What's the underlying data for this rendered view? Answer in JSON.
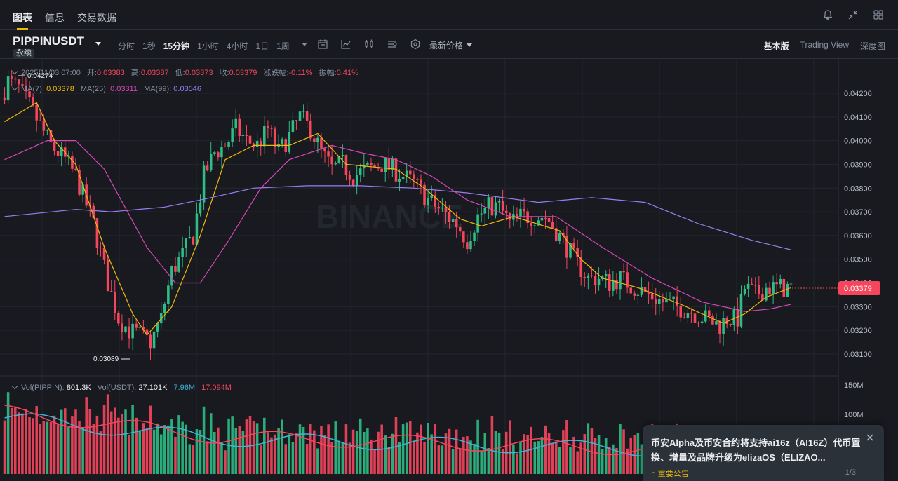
{
  "header": {
    "tabs": [
      {
        "label": "图表",
        "active": true
      },
      {
        "label": "信息",
        "active": false
      },
      {
        "label": "交易数据",
        "active": false
      }
    ],
    "icons": [
      "bell-icon",
      "collapse-icon",
      "grid-icon"
    ]
  },
  "toolbar": {
    "symbol": "PIPPINUSDT",
    "badge": "永续",
    "intervals": [
      {
        "label": "分时",
        "active": false
      },
      {
        "label": "1秒",
        "active": false
      },
      {
        "label": "15分钟",
        "active": true
      },
      {
        "label": "1小时",
        "active": false
      },
      {
        "label": "4小时",
        "active": false
      },
      {
        "label": "1日",
        "active": false
      },
      {
        "label": "1周",
        "active": false
      }
    ],
    "tool_icons": [
      "calendar-icon",
      "indicator-icon",
      "candle-type-icon",
      "settings-sliders-icon",
      "hexagon-icon"
    ],
    "price_type": "最新价格",
    "views": [
      {
        "label": "基本版",
        "active": true
      },
      {
        "label": "Trading View",
        "active": false
      },
      {
        "label": "深度图",
        "active": false
      }
    ]
  },
  "ohlc": {
    "date": "2025/11/03 07:00",
    "open_label": "开:",
    "open": "0.03383",
    "high_label": "高:",
    "high": "0.03387",
    "low_label": "低:",
    "low": "0.03373",
    "close_label": "收:",
    "close": "0.03379",
    "change_label": "涨跌幅:",
    "change": "-0.11%",
    "amp_label": "振幅:",
    "amp": "0.41%"
  },
  "ma_legend": {
    "ma7_label": "MA(7):",
    "ma7": "0.03378",
    "ma25_label": "MA(25):",
    "ma25": "0.03311",
    "ma99_label": "MA(99):",
    "ma99": "0.03546"
  },
  "vol_legend": {
    "vol_label": "Vol(PIPPIN):",
    "vol": "801.3K",
    "volusdt_label": "Vol(USDT):",
    "volusdt": "27.101K",
    "vma1": "7.96M",
    "vma2": "17.094M"
  },
  "price_axis": {
    "labels": [
      "0.04200",
      "0.04100",
      "0.04000",
      "0.03900",
      "0.03800",
      "0.03700",
      "0.03600",
      "0.03500",
      "0.03400",
      "0.03300",
      "0.03200",
      "0.03100"
    ],
    "current": "0.03379"
  },
  "vol_axis": {
    "labels": [
      "150M",
      "100M"
    ]
  },
  "markers": {
    "high": "0.04274",
    "low": "0.03089"
  },
  "watermark": "BINANCE",
  "notice": {
    "title": "币安Alpha及币安合约将支持ai16z（AI16Z）代币置换、增量及品牌升级为elizaOS（ELIZAO...",
    "link": "重要公告",
    "page": "1/3"
  },
  "colors": {
    "up": "#2ebd85",
    "down": "#f6465d",
    "ma7": "#f0b90b",
    "ma25": "#d647b8",
    "ma99": "#9b7cf0",
    "accent": "#f0b90b"
  },
  "chart_data": {
    "type": "candlestick",
    "y_range": [
      0.0305,
      0.043
    ],
    "anchors": [
      [
        0,
        0.0418
      ],
      [
        2,
        0.0425
      ],
      [
        5,
        0.0422
      ],
      [
        9,
        0.0412
      ],
      [
        14,
        0.0398
      ],
      [
        18,
        0.0392
      ],
      [
        21,
        0.0385
      ],
      [
        26,
        0.0365
      ],
      [
        30,
        0.034
      ],
      [
        33,
        0.0325
      ],
      [
        36,
        0.032
      ],
      [
        39,
        0.0318
      ],
      [
        42,
        0.0315
      ],
      [
        45,
        0.0325
      ],
      [
        48,
        0.0345
      ],
      [
        51,
        0.0352
      ],
      [
        54,
        0.036
      ],
      [
        57,
        0.0385
      ],
      [
        60,
        0.0395
      ],
      [
        63,
        0.0398
      ],
      [
        66,
        0.0405
      ],
      [
        69,
        0.04
      ],
      [
        72,
        0.0398
      ],
      [
        75,
        0.0405
      ],
      [
        78,
        0.0395
      ],
      [
        81,
        0.0402
      ],
      [
        84,
        0.041
      ],
      [
        87,
        0.0405
      ],
      [
        90,
        0.0395
      ],
      [
        93,
        0.0388
      ],
      [
        96,
        0.039
      ],
      [
        99,
        0.0385
      ],
      [
        103,
        0.0388
      ],
      [
        107,
        0.039
      ],
      [
        110,
        0.0388
      ],
      [
        113,
        0.0385
      ],
      [
        116,
        0.0382
      ],
      [
        120,
        0.0375
      ],
      [
        124,
        0.037
      ],
      [
        128,
        0.0365
      ],
      [
        131,
        0.0358
      ],
      [
        134,
        0.0368
      ],
      [
        137,
        0.0372
      ],
      [
        140,
        0.0372
      ],
      [
        143,
        0.0365
      ],
      [
        146,
        0.0368
      ],
      [
        150,
        0.0368
      ],
      [
        153,
        0.0368
      ],
      [
        156,
        0.0362
      ],
      [
        159,
        0.0355
      ],
      [
        162,
        0.0348
      ],
      [
        165,
        0.0342
      ],
      [
        168,
        0.0342
      ],
      [
        171,
        0.034
      ],
      [
        174,
        0.0342
      ],
      [
        178,
        0.0338
      ],
      [
        182,
        0.0335
      ],
      [
        186,
        0.0332
      ],
      [
        190,
        0.033
      ],
      [
        194,
        0.0328
      ],
      [
        198,
        0.0325
      ],
      [
        202,
        0.0322
      ],
      [
        204,
        0.0325
      ],
      [
        207,
        0.0325
      ],
      [
        209,
        0.0338
      ],
      [
        212,
        0.0335
      ],
      [
        215,
        0.0338
      ],
      [
        219,
        0.0338
      ],
      [
        221,
        0.0338
      ]
    ],
    "candle_count": 222,
    "ma7": [
      [
        0,
        0.0408
      ],
      [
        9,
        0.0416
      ],
      [
        14,
        0.04
      ],
      [
        20,
        0.039
      ],
      [
        28,
        0.0355
      ],
      [
        36,
        0.0327
      ],
      [
        40,
        0.0318
      ],
      [
        47,
        0.033
      ],
      [
        55,
        0.036
      ],
      [
        62,
        0.0392
      ],
      [
        70,
        0.0398
      ],
      [
        80,
        0.0398
      ],
      [
        88,
        0.0403
      ],
      [
        96,
        0.039
      ],
      [
        110,
        0.0388
      ],
      [
        118,
        0.038
      ],
      [
        128,
        0.0367
      ],
      [
        134,
        0.0364
      ],
      [
        143,
        0.0368
      ],
      [
        156,
        0.0362
      ],
      [
        162,
        0.035
      ],
      [
        168,
        0.0342
      ],
      [
        178,
        0.0338
      ],
      [
        190,
        0.0331
      ],
      [
        202,
        0.0323
      ],
      [
        208,
        0.0327
      ],
      [
        214,
        0.0334
      ],
      [
        221,
        0.0338
      ]
    ],
    "ma25": [
      [
        0,
        0.0392
      ],
      [
        12,
        0.04
      ],
      [
        20,
        0.04
      ],
      [
        28,
        0.0388
      ],
      [
        40,
        0.0355
      ],
      [
        48,
        0.034
      ],
      [
        55,
        0.034
      ],
      [
        63,
        0.0358
      ],
      [
        72,
        0.038
      ],
      [
        80,
        0.0392
      ],
      [
        92,
        0.0398
      ],
      [
        100,
        0.0395
      ],
      [
        110,
        0.0392
      ],
      [
        120,
        0.0385
      ],
      [
        130,
        0.0375
      ],
      [
        142,
        0.0368
      ],
      [
        155,
        0.0368
      ],
      [
        168,
        0.0355
      ],
      [
        182,
        0.0342
      ],
      [
        196,
        0.0332
      ],
      [
        208,
        0.0328
      ],
      [
        215,
        0.0329
      ],
      [
        221,
        0.0331
      ]
    ],
    "ma99": [
      [
        0,
        0.0368
      ],
      [
        20,
        0.0371
      ],
      [
        30,
        0.037
      ],
      [
        45,
        0.0372
      ],
      [
        55,
        0.0375
      ],
      [
        70,
        0.038
      ],
      [
        85,
        0.0381
      ],
      [
        100,
        0.0381
      ],
      [
        115,
        0.038
      ],
      [
        130,
        0.0378
      ],
      [
        150,
        0.0374
      ],
      [
        165,
        0.0376
      ],
      [
        180,
        0.0374
      ],
      [
        195,
        0.0365
      ],
      [
        210,
        0.0358
      ],
      [
        221,
        0.0354
      ]
    ]
  }
}
